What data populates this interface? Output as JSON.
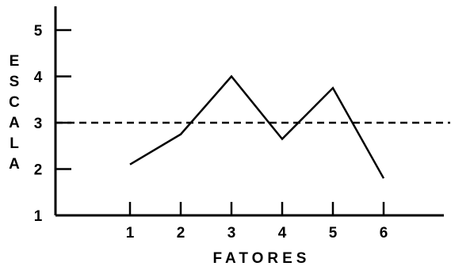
{
  "chart_data": {
    "type": "line",
    "title": "",
    "xlabel": "FATORES",
    "ylabel": "ESCALA",
    "x": [
      1,
      2,
      3,
      4,
      5,
      6
    ],
    "x_tick_labels": [
      "1",
      "2",
      "3",
      "4",
      "5",
      "6"
    ],
    "y_tick_labels": [
      "1",
      "2",
      "3",
      "4",
      "5"
    ],
    "ylim": [
      1,
      5.5
    ],
    "grid": false,
    "series": [
      {
        "values": [
          2.1,
          2.75,
          4.0,
          2.65,
          3.75,
          1.8
        ]
      }
    ],
    "reference_line": {
      "y": 3.0,
      "style": "dashed"
    },
    "colors": {
      "line": "#000000",
      "axis": "#000000"
    }
  }
}
